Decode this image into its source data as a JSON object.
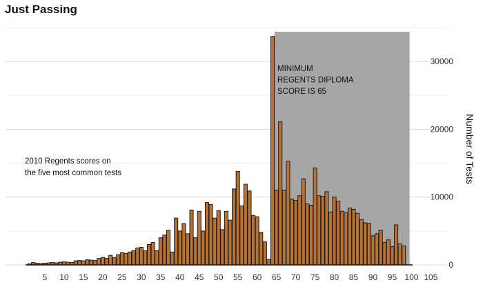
{
  "chart_data": {
    "type": "bar",
    "title": "Just Passing",
    "xlabel": "",
    "ylabel": "Number of Tests",
    "x_ticks": [
      5,
      10,
      15,
      20,
      25,
      30,
      35,
      40,
      45,
      50,
      55,
      60,
      65,
      70,
      75,
      80,
      85,
      90,
      95,
      100,
      105
    ],
    "y_ticks": [
      0,
      10000,
      20000,
      30000
    ],
    "xlim": [
      0,
      106
    ],
    "ylim": [
      0,
      35000
    ],
    "y_axis_position": "right",
    "grid": "horizontal",
    "x": [
      1,
      2,
      3,
      4,
      5,
      6,
      7,
      8,
      9,
      10,
      11,
      12,
      13,
      14,
      15,
      16,
      17,
      18,
      19,
      20,
      21,
      22,
      23,
      24,
      25,
      26,
      27,
      28,
      29,
      30,
      31,
      32,
      33,
      34,
      35,
      36,
      37,
      38,
      39,
      40,
      41,
      42,
      43,
      44,
      45,
      46,
      47,
      48,
      49,
      50,
      51,
      52,
      53,
      54,
      55,
      56,
      57,
      58,
      59,
      60,
      61,
      62,
      63,
      64,
      65,
      66,
      67,
      68,
      69,
      70,
      71,
      72,
      73,
      74,
      75,
      76,
      77,
      78,
      79,
      80,
      81,
      82,
      83,
      84,
      85,
      86,
      87,
      88,
      89,
      90,
      91,
      92,
      93,
      94,
      95,
      96,
      97,
      98,
      99
    ],
    "values": [
      150,
      350,
      250,
      200,
      250,
      300,
      350,
      300,
      400,
      450,
      400,
      350,
      600,
      650,
      600,
      750,
      700,
      650,
      950,
      1100,
      950,
      1400,
      1100,
      1500,
      1800,
      1700,
      1900,
      2100,
      2500,
      2600,
      2100,
      3000,
      3300,
      2100,
      4000,
      4400,
      5100,
      1900,
      6900,
      5000,
      6100,
      4600,
      8100,
      4000,
      7900,
      5000,
      9200,
      8900,
      6900,
      8000,
      5200,
      7900,
      6600,
      11200,
      13800,
      8700,
      11900,
      10900,
      7300,
      7100,
      4800,
      3400,
      800,
      33700,
      11000,
      21100,
      11000,
      15300,
      9700,
      9500,
      10200,
      12700,
      9000,
      8800,
      14300,
      10200,
      10100,
      10800,
      7800,
      10000,
      9400,
      7900,
      7700,
      8400,
      8200,
      7600,
      6700,
      6200,
      6100,
      4300,
      4600,
      5100,
      3300,
      3700,
      2700,
      5900,
      3100,
      2800,
      0
    ],
    "bar_color": "#b87333",
    "shaded_region": [
      65,
      100
    ],
    "shaded_color": "#a6a6a6",
    "annotations": [
      {
        "lines": [
          "MINIMUM",
          "REGENTS DIPLOMA",
          "SCORE IS 65"
        ]
      },
      {
        "lines": [
          "2010 Regents scores on",
          "the five most common tests"
        ]
      }
    ]
  }
}
